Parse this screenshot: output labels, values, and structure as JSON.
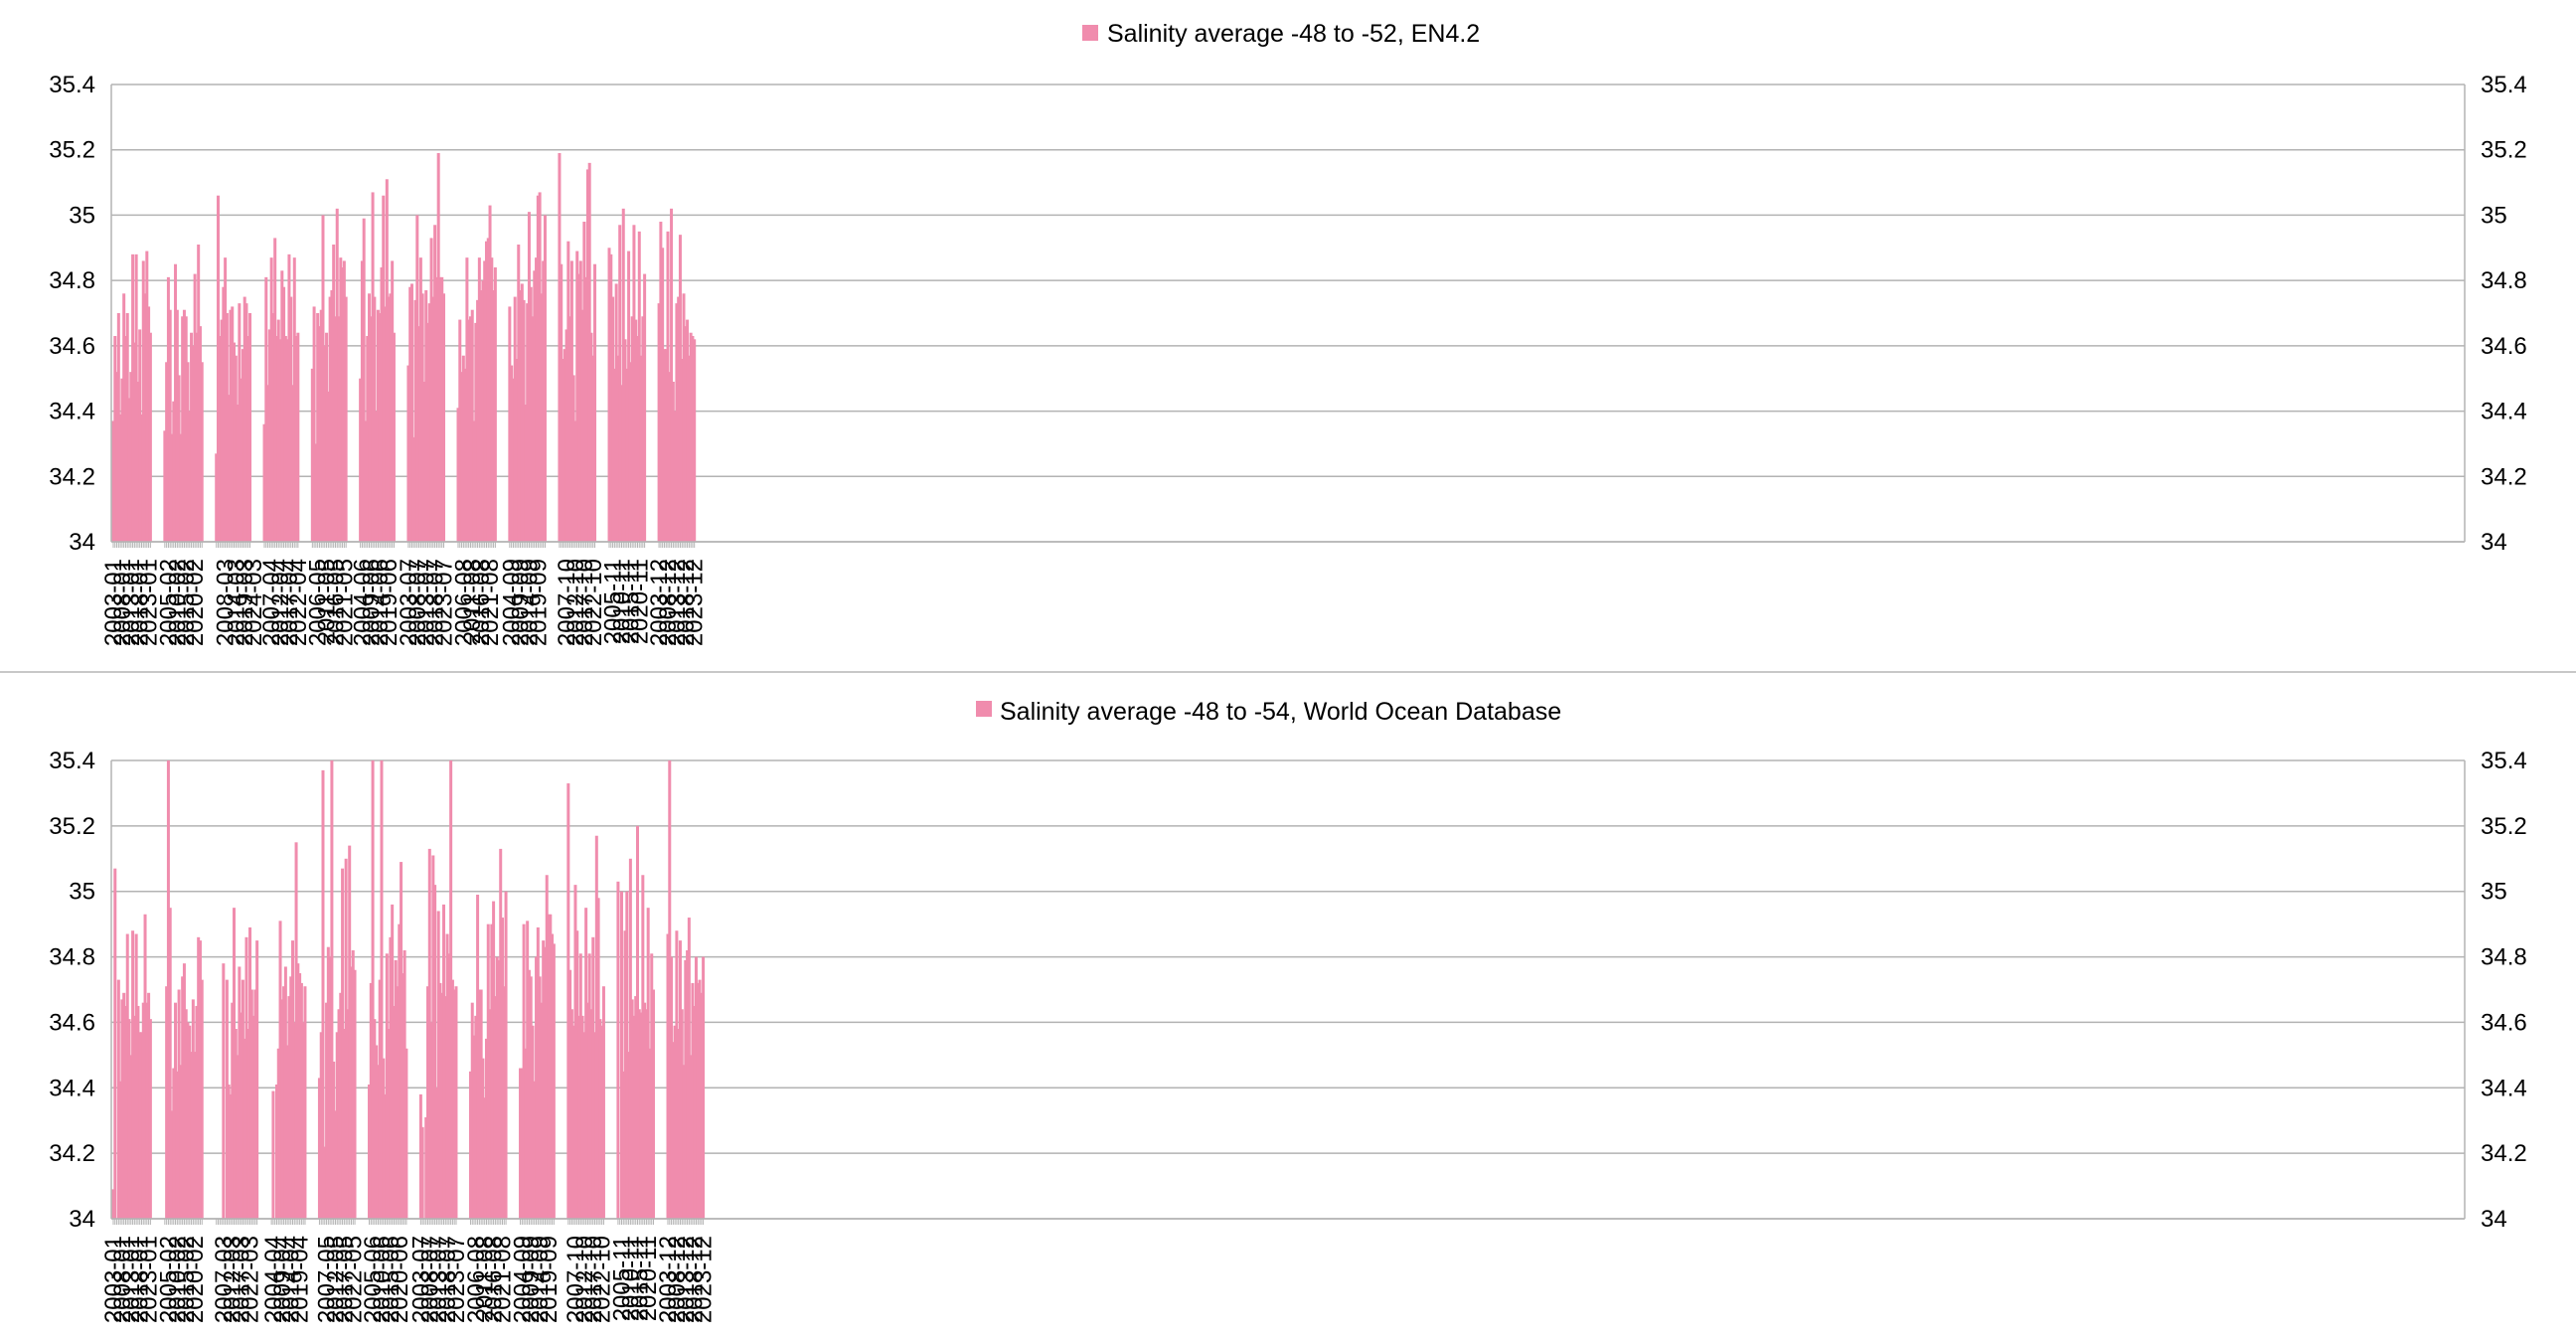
{
  "colors": {
    "bar": "#f08cad",
    "grid": "#b3b3b3",
    "axis": "#b3b3b3",
    "divider": "#c8c8c8",
    "text": "#000000"
  },
  "chart_data": [
    {
      "type": "bar",
      "title": "",
      "legend": {
        "label": "Salinity average -48 to -52, EN4.2",
        "position": "top-center"
      },
      "xlabel": "",
      "ylabel": "",
      "ylim": [
        34,
        35.4
      ],
      "yticks": [
        "34",
        "34.2",
        "34.4",
        "34.6",
        "34.8",
        "35",
        "35.2",
        "35.4"
      ],
      "grid": true,
      "xtick_labels": [
        "2003-01",
        "2008-01",
        "2013-01",
        "2018-01",
        "2023-01",
        "2005-02",
        "2010-02",
        "2015-02",
        "2020-02",
        "2008-03",
        "2014-03",
        "2019-03",
        "2024-03",
        "2007-04",
        "2012-04",
        "2017-04",
        "2022-04",
        "2006-05",
        "2011-05",
        "2016-05",
        "2021-05",
        "2004-06",
        "2009-06",
        "2014-06",
        "2019-06",
        "2003-07",
        "2008-07",
        "2013-07",
        "2018-07",
        "2023-07",
        "2006-08",
        "2011-08",
        "2016-08",
        "2021-08",
        "2004-09",
        "2009-09",
        "2014-09",
        "2019-09",
        "2007-10",
        "2012-10",
        "2017-10",
        "2022-10",
        "2005-11",
        "2010-11",
        "2015-11",
        "2020-11",
        "2003-12",
        "2008-12",
        "2013-12",
        "2018-12",
        "2023-12"
      ],
      "months": [
        "01",
        "02",
        "03",
        "04",
        "05",
        "06",
        "07",
        "08",
        "09",
        "10",
        "11",
        "12"
      ],
      "year_start": 2003,
      "series": [
        {
          "values": [
            [
              34.37,
              34.63,
              34.52,
              34.7,
              34.39,
              34.5,
              34.76,
              34.63,
              34.7,
              34.44,
              34.52,
              34.88,
              34.61,
              34.88,
              34.49,
              34.65,
              34.39,
              34.86,
              34.76,
              34.89,
              34.72,
              34.64
            ],
            [
              34.34,
              34.55,
              34.81,
              34.71,
              34.33,
              34.43,
              34.85,
              34.71,
              34.51,
              34.33,
              34.69,
              34.71,
              34.69,
              34.55,
              34.4,
              34.64,
              34.6,
              34.82,
              34.64,
              34.91,
              34.66,
              34.55
            ],
            [
              34.27,
              35.06,
              34.63,
              34.68,
              34.78,
              34.87,
              34.7,
              34.45,
              34.71,
              34.72,
              34.61,
              34.57,
              34.42,
              34.73,
              34.5,
              34.59,
              34.75,
              34.73,
              34.63,
              34.7
            ],
            [
              34.36,
              34.81,
              34.48,
              34.65,
              34.87,
              34.7,
              34.93,
              34.63,
              34.68,
              34.62,
              34.83,
              34.78,
              34.63,
              34.62,
              34.88,
              34.75,
              34.48,
              34.87,
              34.63,
              34.64
            ],
            [
              34.53,
              34.72,
              34.3,
              34.7,
              34.66,
              34.71,
              35.0,
              34.6,
              34.64,
              34.46,
              34.75,
              34.77,
              34.91,
              34.69,
              35.02,
              34.69,
              34.87,
              34.84,
              34.86,
              34.75
            ],
            [
              34.5,
              34.86,
              34.99,
              34.37,
              34.63,
              34.76,
              34.69,
              35.07,
              34.75,
              34.4,
              34.71,
              34.7,
              34.84,
              35.06,
              34.72,
              35.11,
              34.75,
              34.76,
              34.86,
              34.64
            ],
            [
              34.54,
              34.78,
              34.79,
              34.32,
              34.74,
              35.0,
              34.66,
              34.87,
              34.76,
              34.49,
              34.77,
              34.67,
              34.73,
              34.93,
              34.75,
              34.97,
              34.81,
              35.19,
              34.81,
              34.81,
              34.76
            ],
            [
              34.41,
              34.68,
              34.52,
              34.57,
              34.53,
              34.87,
              34.68,
              34.69,
              34.71,
              34.37,
              34.67,
              34.74,
              34.87,
              34.77,
              34.8,
              34.86,
              34.92,
              34.93,
              35.03,
              34.87,
              34.77,
              34.84
            ],
            [
              34.72,
              34.54,
              34.5,
              34.75,
              34.56,
              34.91,
              34.77,
              34.79,
              34.74,
              34.42,
              34.73,
              35.01,
              34.78,
              34.69,
              34.83,
              34.87,
              35.06,
              35.07,
              34.76,
              34.86,
              35.0
            ],
            [
              35.19,
              34.85,
              34.56,
              34.59,
              34.65,
              34.92,
              34.69,
              34.86,
              34.51,
              34.37,
              34.89,
              34.82,
              34.86,
              34.71,
              34.98,
              34.81,
              35.14,
              35.16,
              34.64,
              34.57,
              34.85
            ],
            [
              34.9,
              34.88,
              34.75,
              34.53,
              34.79,
              34.57,
              34.97,
              34.48,
              35.02,
              34.62,
              34.53,
              34.89,
              34.55,
              34.69,
              34.97,
              34.68,
              34.63,
              34.95,
              34.57,
              34.69,
              34.82
            ],
            [
              34.73,
              34.98,
              34.9,
              34.59,
              34.59,
              34.95,
              34.52,
              35.02,
              34.49,
              34.4,
              34.73,
              34.75,
              34.94,
              34.56,
              34.76,
              34.66,
              34.68,
              34.57,
              34.64,
              34.63,
              34.62
            ]
          ]
        }
      ]
    },
    {
      "type": "bar",
      "title": "",
      "legend": {
        "label": "Salinity average -48 to -54, World Ocean Database",
        "position": "top-center"
      },
      "xlabel": "",
      "ylabel": "",
      "ylim": [
        34,
        35.4
      ],
      "yticks": [
        "34",
        "34.2",
        "34.4",
        "34.6",
        "34.8",
        "35",
        "35.2",
        "35.4"
      ],
      "grid": true,
      "xtick_labels": [
        "2003-01",
        "2008-01",
        "2013-01",
        "2018-01",
        "2023-01",
        "2005-02",
        "2010-02",
        "2015-02",
        "2020-02",
        "2007-03",
        "2012-03",
        "2017-03",
        "2022-03",
        "2004-04",
        "2009-04",
        "2014-04",
        "2019-04",
        "2007-05",
        "2012-05",
        "2017-05",
        "2022-05",
        "2005-06",
        "2010-06",
        "2015-06",
        "2020-06",
        "2003-07",
        "2008-07",
        "2013-07",
        "2018-07",
        "2023-07",
        "2006-08",
        "2011-08",
        "2016-08",
        "2021-08",
        "2004-09",
        "2009-09",
        "2014-09",
        "2019-09",
        "2007-10",
        "2012-10",
        "2017-10",
        "2022-10",
        "2005-11",
        "2010-11",
        "2015-11",
        "2020-11",
        "2003-12",
        "2008-12",
        "2013-12",
        "2018-12",
        "2023-12"
      ],
      "months": [
        "01",
        "02",
        "03",
        "04",
        "05",
        "06",
        "07",
        "08",
        "09",
        "10",
        "11",
        "12"
      ],
      "year_start": 2003,
      "series": [
        {
          "values": [
            [
              34.09,
              35.07,
              null,
              34.73,
              34.42,
              34.67,
              34.69,
              34.65,
              34.87,
              34.61,
              34.5,
              34.88,
              34.62,
              34.87,
              34.65,
              34.57,
              34.57,
              34.66,
              34.93,
              34.66,
              34.69,
              34.61
            ],
            [
              null,
              34.71,
              35.4,
              34.95,
              34.33,
              34.46,
              34.66,
              34.45,
              34.7,
              34.47,
              34.74,
              34.78,
              34.64,
              34.6,
              34.59,
              34.51,
              34.67,
              34.51,
              34.65,
              34.86,
              34.85,
              34.73
            ],
            [
              null,
              null,
              null,
              null,
              34.78,
              null,
              34.73,
              34.41,
              34.38,
              34.66,
              34.95,
              34.58,
              34.5,
              34.77,
              34.63,
              34.73,
              34.55,
              34.86,
              34.58,
              34.89,
              34.7,
              34.62,
              34.7,
              34.85
            ],
            [
              null,
              34.39,
              null,
              34.41,
              34.52,
              34.91,
              34.67,
              34.71,
              34.77,
              34.53,
              34.68,
              34.74,
              34.85,
              34.6,
              35.15,
              34.78,
              34.75,
              34.72,
              34.6,
              34.71
            ],
            [
              34.43,
              34.57,
              35.37,
              34.22,
              34.66,
              34.83,
              34.8,
              35.4,
              34.48,
              34.33,
              34.57,
              34.64,
              34.69,
              35.07,
              34.58,
              35.1,
              34.64,
              35.14,
              34.77,
              34.82,
              34.76
            ],
            [
              34.41,
              34.72,
              35.4,
              34.61,
              34.53,
              34.47,
              34.73,
              35.4,
              34.49,
              34.38,
              34.81,
              34.58,
              34.86,
              34.96,
              34.65,
              34.79,
              34.71,
              34.9,
              35.09,
              34.75,
              34.82,
              34.52
            ],
            [
              34.38,
              34.28,
              null,
              34.31,
              34.71,
              35.13,
              34.6,
              35.11,
              35.02,
              34.4,
              34.94,
              34.72,
              34.69,
              34.96,
              34.68,
              34.87,
              34.81,
              35.4,
              34.73,
              34.7,
              34.71
            ],
            [
              34.45,
              34.66,
              34.56,
              34.62,
              34.99,
              34.7,
              34.7,
              34.49,
              34.37,
              34.55,
              34.9,
              34.64,
              34.9,
              34.97,
              34.68,
              34.8,
              34.79,
              35.13,
              34.92,
              34.71,
              35.0
            ],
            [
              34.46,
              34.46,
              34.9,
              34.52,
              34.91,
              34.76,
              34.74,
              34.59,
              34.42,
              34.8,
              34.89,
              34.74,
              34.66,
              34.85,
              34.83,
              35.05,
              34.93,
              34.93,
              34.87,
              34.84
            ],
            [
              35.33,
              34.76,
              34.64,
              34.59,
              35.02,
              34.88,
              34.62,
              34.81,
              34.62,
              34.57,
              34.95,
              34.66,
              34.81,
              34.64,
              34.86,
              34.57,
              35.17,
              34.98,
              34.61,
              34.59,
              34.71
            ],
            [
              35.03,
              null,
              35.0,
              34.45,
              34.88,
              35.0,
              34.51,
              35.1,
              34.67,
              34.62,
              34.68,
              35.2,
              34.64,
              34.63,
              35.05,
              34.66,
              34.64,
              34.95,
              34.52,
              34.81,
              34.7
            ],
            [
              34.87,
              35.4,
              34.8,
              34.54,
              34.59,
              34.88,
              34.58,
              34.85,
              34.64,
              34.47,
              34.79,
              34.82,
              34.92,
              34.5,
              34.72,
              34.65,
              34.8,
              34.72,
              34.73,
              34.69,
              34.8
            ]
          ]
        }
      ]
    }
  ]
}
